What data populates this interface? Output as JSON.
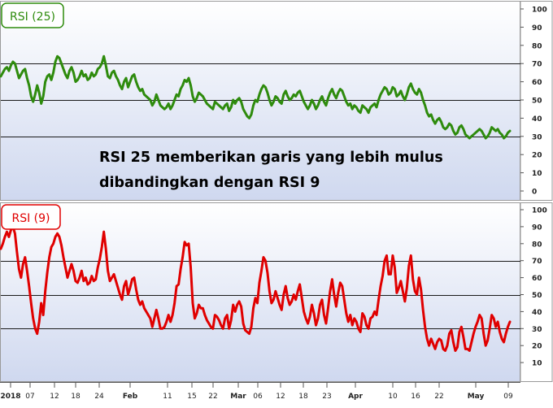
{
  "annotation": {
    "line1": "RSI 25 memberikan garis yang lebih mulus",
    "line2": "dibandingkan dengan RSI 9"
  },
  "x_axis": {
    "ticks": [
      "2018",
      "07",
      "12",
      "18",
      "24",
      "Feb",
      "11",
      "15",
      "22",
      "Mar",
      "06",
      "12",
      "18",
      "23",
      "Apr",
      "10",
      "16",
      "22",
      "May",
      "09"
    ],
    "bold_ticks": [
      "2018",
      "Feb",
      "Mar",
      "Apr",
      "May"
    ]
  },
  "colors": {
    "rsi25_line": "#2e8b0d",
    "rsi9_line": "#e00000",
    "level_line": "#1a1a1a",
    "panel_top": "#ffffff",
    "panel_bottom": "#cfd8ef"
  },
  "chart_data": [
    {
      "type": "line",
      "title": "RSI (25)",
      "ylim": [
        0,
        100
      ],
      "y_ticks": [
        0,
        10,
        20,
        30,
        40,
        50,
        60,
        70,
        80,
        90,
        100
      ],
      "levels": [
        30,
        50,
        70
      ],
      "series": [
        {
          "name": "RSI (25)",
          "values": [
            63,
            65,
            67,
            68,
            66,
            69,
            71,
            70,
            66,
            62,
            64,
            66,
            67,
            62,
            58,
            52,
            49,
            53,
            58,
            54,
            48,
            52,
            60,
            63,
            64,
            61,
            65,
            71,
            74,
            73,
            70,
            67,
            64,
            62,
            66,
            68,
            65,
            60,
            61,
            63,
            66,
            63,
            64,
            61,
            62,
            65,
            63,
            64,
            67,
            68,
            70,
            74,
            69,
            63,
            62,
            65,
            66,
            63,
            61,
            58,
            56,
            60,
            62,
            57,
            60,
            63,
            64,
            60,
            57,
            55,
            56,
            53,
            52,
            51,
            50,
            47,
            49,
            53,
            50,
            47,
            46,
            45,
            46,
            48,
            45,
            47,
            50,
            53,
            52,
            56,
            58,
            61,
            60,
            62,
            58,
            52,
            49,
            51,
            54,
            53,
            52,
            50,
            48,
            47,
            46,
            45,
            49,
            48,
            47,
            46,
            45,
            47,
            48,
            44,
            46,
            50,
            48,
            50,
            51,
            49,
            45,
            43,
            41,
            40,
            42,
            47,
            50,
            49,
            53,
            56,
            58,
            57,
            54,
            50,
            47,
            49,
            52,
            51,
            49,
            48,
            53,
            55,
            52,
            50,
            51,
            53,
            52,
            54,
            55,
            52,
            49,
            47,
            45,
            47,
            50,
            48,
            45,
            47,
            50,
            52,
            49,
            47,
            51,
            54,
            56,
            53,
            51,
            54,
            56,
            55,
            52,
            49,
            47,
            48,
            45,
            47,
            46,
            44,
            43,
            47,
            46,
            45,
            43,
            46,
            47,
            48,
            46,
            50,
            53,
            55,
            57,
            56,
            53,
            54,
            57,
            56,
            52,
            53,
            55,
            52,
            50,
            53,
            57,
            59,
            56,
            54,
            53,
            56,
            54,
            50,
            47,
            43,
            41,
            42,
            39,
            37,
            39,
            40,
            38,
            35,
            34,
            35,
            37,
            36,
            33,
            31,
            32,
            35,
            36,
            34,
            31,
            30,
            29,
            30,
            31,
            32,
            33,
            34,
            33,
            31,
            29,
            30,
            32,
            35,
            34,
            33,
            34,
            32,
            31,
            29,
            30,
            32,
            33
          ]
        }
      ]
    },
    {
      "type": "line",
      "title": "RSI (9)",
      "ylim": [
        0,
        100
      ],
      "y_ticks": [
        10,
        20,
        30,
        40,
        50,
        60,
        70,
        80,
        90,
        100
      ],
      "levels": [
        30,
        50,
        70
      ],
      "series": [
        {
          "name": "RSI (9)",
          "values": [
            77,
            80,
            84,
            87,
            84,
            88,
            90,
            86,
            75,
            65,
            60,
            68,
            72,
            64,
            55,
            45,
            36,
            30,
            27,
            34,
            45,
            38,
            52,
            63,
            72,
            78,
            80,
            84,
            86,
            84,
            79,
            72,
            66,
            60,
            64,
            68,
            64,
            58,
            57,
            60,
            64,
            58,
            60,
            56,
            57,
            61,
            58,
            59,
            66,
            71,
            78,
            87,
            77,
            64,
            58,
            60,
            62,
            58,
            54,
            50,
            47,
            55,
            58,
            50,
            54,
            59,
            60,
            53,
            47,
            44,
            46,
            42,
            40,
            38,
            36,
            31,
            36,
            41,
            36,
            30,
            30,
            31,
            34,
            38,
            34,
            38,
            45,
            55,
            56,
            65,
            72,
            81,
            79,
            80,
            66,
            45,
            36,
            39,
            44,
            42,
            42,
            38,
            35,
            33,
            31,
            30,
            38,
            37,
            35,
            32,
            30,
            36,
            38,
            30,
            35,
            44,
            40,
            44,
            46,
            43,
            33,
            29,
            28,
            27,
            31,
            42,
            48,
            45,
            57,
            64,
            72,
            70,
            63,
            52,
            45,
            47,
            52,
            48,
            44,
            41,
            50,
            55,
            48,
            44,
            46,
            50,
            47,
            52,
            56,
            48,
            40,
            36,
            33,
            37,
            44,
            39,
            32,
            36,
            44,
            47,
            38,
            33,
            42,
            52,
            59,
            50,
            43,
            51,
            57,
            55,
            47,
            39,
            34,
            38,
            32,
            36,
            34,
            30,
            28,
            39,
            37,
            32,
            30,
            36,
            37,
            40,
            38,
            47,
            55,
            61,
            70,
            73,
            62,
            62,
            73,
            66,
            51,
            54,
            58,
            52,
            46,
            54,
            67,
            73,
            59,
            52,
            50,
            60,
            53,
            41,
            31,
            24,
            20,
            24,
            21,
            18,
            22,
            24,
            23,
            18,
            17,
            20,
            27,
            29,
            22,
            17,
            19,
            28,
            31,
            25,
            18,
            18,
            17,
            22,
            27,
            31,
            34,
            38,
            36,
            27,
            20,
            23,
            30,
            38,
            36,
            31,
            34,
            28,
            24,
            22,
            27,
            31,
            34
          ]
        }
      ]
    }
  ]
}
